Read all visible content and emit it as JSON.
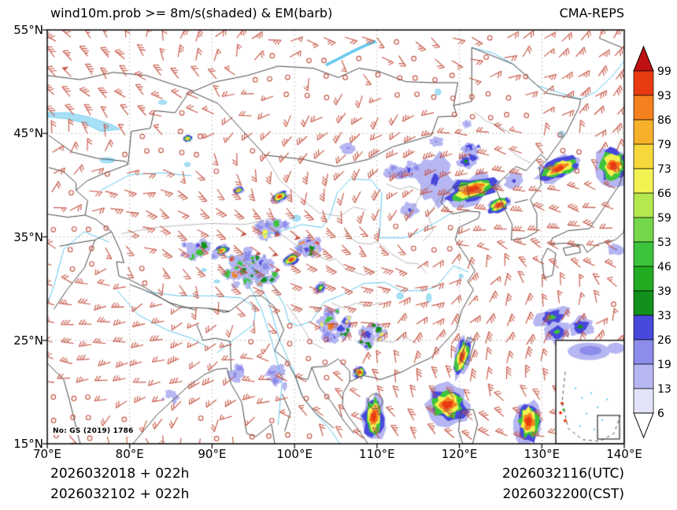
{
  "header": {
    "title": "wind10m.prob >= 8m/s(shaded) & EM(barb)",
    "source": "CMA-REPS"
  },
  "watermark": "No: GS (2019) 1786",
  "footer": {
    "line1_left": "2026032018 + 022h",
    "line2_left": "2026032102 + 022h",
    "line1_right": "2026032116(UTC)",
    "line2_right": "2026032200(CST)"
  },
  "axes": {
    "x_ticks": [
      {
        "lon": 70,
        "label": "70°E"
      },
      {
        "lon": 80,
        "label": "80°E"
      },
      {
        "lon": 90,
        "label": "90°E"
      },
      {
        "lon": 100,
        "label": "100°E"
      },
      {
        "lon": 110,
        "label": "110°E"
      },
      {
        "lon": 120,
        "label": "120°E"
      },
      {
        "lon": 130,
        "label": "130°E"
      },
      {
        "lon": 140,
        "label": "140°E"
      }
    ],
    "y_ticks": [
      {
        "lat": 55,
        "label": "55°N"
      },
      {
        "lat": 45,
        "label": "45°N"
      },
      {
        "lat": 35,
        "label": "35°N"
      },
      {
        "lat": 25,
        "label": "25°N"
      },
      {
        "lat": 15,
        "label": "15°N"
      }
    ]
  },
  "colorbar": {
    "levels": [
      6,
      13,
      19,
      26,
      33,
      39,
      46,
      53,
      59,
      66,
      73,
      79,
      86,
      93,
      99
    ],
    "labels": [
      "6",
      "13",
      "19",
      "26",
      "33",
      "39",
      "46",
      "53",
      "59",
      "66",
      "73",
      "79",
      "86",
      "93",
      "99"
    ],
    "band_colors": [
      "#e2e2f8",
      "#b6b6f2",
      "#8c8cea",
      "#4848dc",
      "#12901c",
      "#22ac22",
      "#3cc43c",
      "#74d84a",
      "#b4e84e",
      "#f2f252",
      "#f6d83c",
      "#f7b02c",
      "#f5801e",
      "#e93b12"
    ],
    "over_color": "#bf1111",
    "under_color": "#ffffff"
  },
  "map": {
    "extent": {
      "lon_min": 70,
      "lon_max": 140,
      "lat_min": 15,
      "lat_max": 55
    },
    "grid_lons": [
      80,
      90,
      100,
      110,
      120,
      130
    ],
    "grid_lats": [
      25,
      35,
      45
    ],
    "colors": {
      "grid": "#b8b8b8",
      "river": "#63c8ee",
      "lake": "#a8e0f5",
      "country": "#4a4a4a",
      "province": "#9a9a9a",
      "barb": "#c4503f",
      "frame": "#000000"
    },
    "barbs": {
      "spacing_x": 23,
      "spacing_y": 24,
      "seed": 20260320
    },
    "blobs": [
      {
        "lon": 117.0,
        "lat": 40.5,
        "rx": 2.2,
        "ry": 2.4,
        "rot": 10,
        "core": 26
      },
      {
        "lon": 114.0,
        "lat": 37.6,
        "rx": 1.0,
        "ry": 0.7,
        "rot": 0,
        "core": 26
      },
      {
        "lon": 126.6,
        "lat": 40.4,
        "rx": 1.1,
        "ry": 0.7,
        "rot": -20,
        "core": 26
      },
      {
        "lon": 106.5,
        "lat": 43.6,
        "rx": 0.9,
        "ry": 0.5,
        "rot": 0,
        "core": 19
      },
      {
        "lon": 111.5,
        "lat": 41.2,
        "rx": 0.7,
        "ry": 0.45,
        "rot": 0,
        "core": 19
      },
      {
        "lon": 117.2,
        "lat": 44.2,
        "rx": 0.8,
        "ry": 0.5,
        "rot": 0,
        "core": 19
      },
      {
        "lon": 120.9,
        "lat": 45.9,
        "rx": 0.6,
        "ry": 0.4,
        "rot": 0,
        "core": 19
      },
      {
        "lon": 139.0,
        "lat": 33.8,
        "rx": 0.9,
        "ry": 0.6,
        "rot": 0,
        "core": 19
      },
      {
        "lon": 120.8,
        "lat": 42.3,
        "rx": 1.0,
        "ry": 0.7,
        "rot": 0,
        "core": 33
      },
      {
        "lon": 131.2,
        "lat": 27.2,
        "rx": 2.2,
        "ry": 1.0,
        "rot": -15,
        "core": 46
      },
      {
        "lon": 134.7,
        "lat": 26.3,
        "rx": 1.6,
        "ry": 0.9,
        "rot": -10,
        "core": 33
      },
      {
        "lon": 131.8,
        "lat": 25.8,
        "rx": 1.6,
        "ry": 1.0,
        "rot": -20,
        "core": 46
      },
      {
        "lon": 103.2,
        "lat": 30.1,
        "rx": 0.8,
        "ry": 0.45,
        "rot": -40,
        "core": 66
      },
      {
        "lon": 87.0,
        "lat": 44.5,
        "rx": 0.7,
        "ry": 0.35,
        "rot": -10,
        "core": 79
      },
      {
        "lon": 93.2,
        "lat": 39.5,
        "rx": 0.7,
        "ry": 0.35,
        "rot": -20,
        "core": 86
      },
      {
        "lon": 91.2,
        "lat": 33.7,
        "rx": 1.1,
        "ry": 0.5,
        "rot": -20,
        "core": 86
      },
      {
        "lon": 124.8,
        "lat": 38.1,
        "rx": 1.6,
        "ry": 0.7,
        "rot": -30,
        "core": 93
      },
      {
        "lon": 99.6,
        "lat": 32.8,
        "rx": 1.2,
        "ry": 0.55,
        "rot": -30,
        "core": 93
      },
      {
        "lon": 107.9,
        "lat": 21.9,
        "rx": 0.8,
        "ry": 0.6,
        "rot": 0,
        "core": 93
      },
      {
        "lon": 132.1,
        "lat": 41.6,
        "rx": 2.9,
        "ry": 1.0,
        "rot": -22,
        "core": 93
      },
      {
        "lon": 121.6,
        "lat": 39.6,
        "rx": 3.4,
        "ry": 1.3,
        "rot": -18,
        "core": 99
      },
      {
        "lon": 138.7,
        "lat": 41.9,
        "rx": 2.1,
        "ry": 1.8,
        "rot": -10,
        "core": 99
      },
      {
        "lon": 98.2,
        "lat": 38.9,
        "rx": 1.1,
        "ry": 0.5,
        "rot": -25,
        "core": 99
      },
      {
        "lon": 94.3,
        "lat": 32.2,
        "rx": 1.4,
        "ry": 0.5,
        "rot": -25,
        "core": 99
      },
      {
        "lon": 120.3,
        "lat": 23.4,
        "rx": 1.0,
        "ry": 2.0,
        "rot": 15,
        "core": 99
      },
      {
        "lon": 118.6,
        "lat": 18.8,
        "rx": 2.6,
        "ry": 1.8,
        "rot": 0,
        "core": 99
      },
      {
        "lon": 109.6,
        "lat": 17.6,
        "rx": 1.4,
        "ry": 2.3,
        "rot": 5,
        "core": 99
      },
      {
        "lon": 128.4,
        "lat": 17.2,
        "rx": 1.7,
        "ry": 2.2,
        "rot": 0,
        "core": 99
      }
    ],
    "clusters": [
      {
        "lon": 94.5,
        "lat": 31.8,
        "sx": 4.5,
        "sy": 2.0,
        "n": 55,
        "max": 99
      },
      {
        "lon": 88.0,
        "lat": 33.8,
        "sx": 2.8,
        "sy": 1.6,
        "n": 22,
        "max": 59
      },
      {
        "lon": 97.0,
        "lat": 35.8,
        "sx": 2.4,
        "sy": 1.1,
        "n": 18,
        "max": 79
      },
      {
        "lon": 104.8,
        "lat": 26.3,
        "sx": 2.8,
        "sy": 2.0,
        "n": 22,
        "max": 93
      },
      {
        "lon": 98.0,
        "lat": 21.5,
        "sx": 2.3,
        "sy": 1.8,
        "n": 12,
        "max": 19
      },
      {
        "lon": 85.0,
        "lat": 19.6,
        "sx": 1.5,
        "sy": 0.9,
        "n": 7,
        "max": 13
      },
      {
        "lon": 113.6,
        "lat": 41.6,
        "sx": 2.4,
        "sy": 1.4,
        "n": 12,
        "max": 26
      },
      {
        "lon": 121.5,
        "lat": 43.3,
        "sx": 1.8,
        "sy": 1.1,
        "n": 10,
        "max": 26
      },
      {
        "lon": 109.0,
        "lat": 25.5,
        "sx": 2.2,
        "sy": 1.4,
        "n": 14,
        "max": 66
      },
      {
        "lon": 93.0,
        "lat": 21.5,
        "sx": 1.6,
        "sy": 1.2,
        "n": 8,
        "max": 19
      },
      {
        "lon": 101.5,
        "lat": 33.8,
        "sx": 2.0,
        "sy": 1.2,
        "n": 20,
        "max": 99
      }
    ]
  },
  "chart_data": {
    "type": "heatmap",
    "title": "wind10m.prob >= 8m/s(shaded) & EM(barb)",
    "model": "CMA-REPS",
    "x_range_degE": [
      70,
      140
    ],
    "y_range_degN": [
      15,
      55
    ],
    "prob_levels_percent": [
      6,
      13,
      19,
      26,
      33,
      39,
      46,
      53,
      59,
      66,
      73,
      79,
      86,
      93,
      99
    ],
    "high_prob_regions": [
      "Bohai / North China coast ~118-125E, 38-41N (>93%)",
      "NE China / Japan Sea band ~129-135E, 40-43N (>86%)",
      "far east edge ~137-140E, 40-44N (>93%)",
      "Hexi corridor spots ~97-99E, 38-40N (>93%)",
      "Tibetan Plateau speckled field ~85-103E, 28-36N (mixed 13-99%)",
      "Taiwan Strait ~119-121E, 21-26N (>93%)",
      "South China Sea ~116-121E, 16-21N (>93%)",
      "Hainan vicinity ~108-111E, 15-20N (>93%)",
      "SE of Japan / Philippine Sea blobs ~128-136E, 22-28N (19-46%)",
      "bottom-right ocean cell ~127-130E, 15-19N (>93%)"
    ]
  }
}
